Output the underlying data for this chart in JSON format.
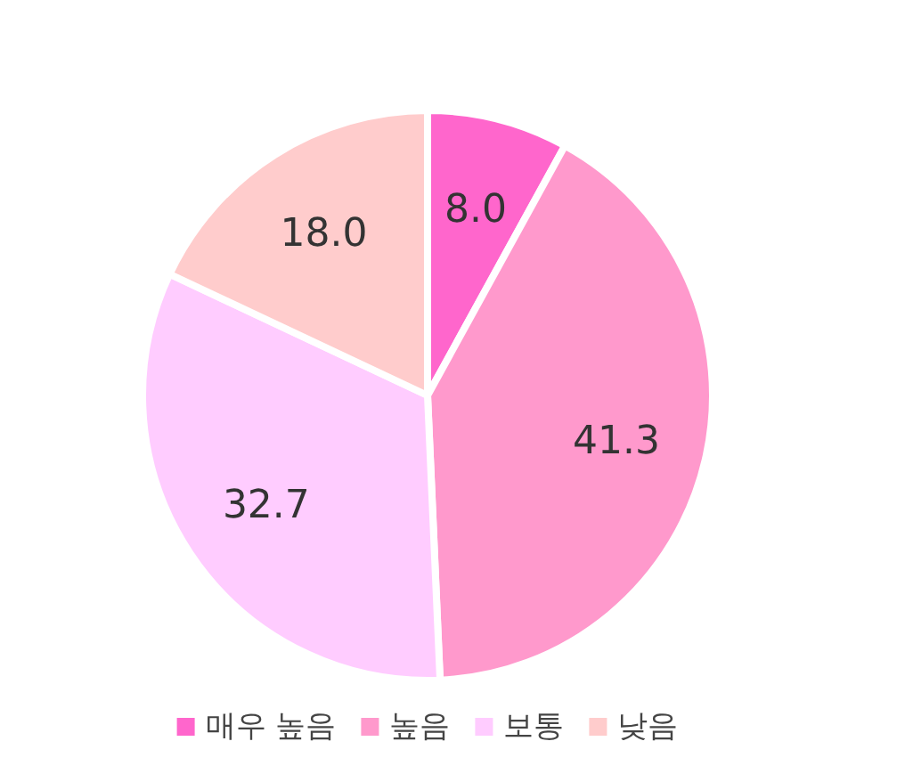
{
  "chart_data": {
    "type": "pie",
    "categories": [
      "매우 높음",
      "높음",
      "보통",
      "낮음"
    ],
    "values": [
      8.0,
      41.3,
      32.7,
      18.0
    ],
    "colors": [
      "#ff66cc",
      "#ff99cc",
      "#ffccff",
      "#ffcccc"
    ],
    "value_labels": [
      "8.0",
      "41.3",
      "32.7",
      "18.0"
    ],
    "legend": "bottom"
  }
}
